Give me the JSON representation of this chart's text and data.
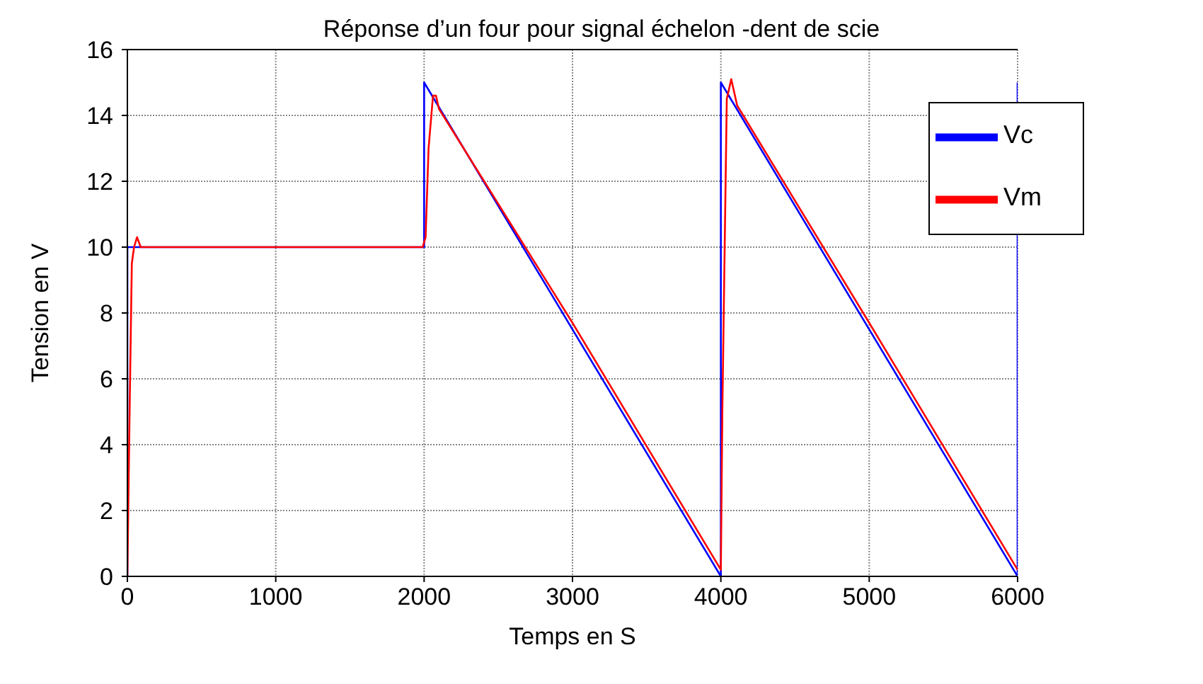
{
  "chart_data": {
    "type": "line",
    "title": "Réponse d’un four pour signal échelon -dent de scie",
    "xlabel": "Temps en S",
    "ylabel": "Tension en V",
    "series": [
      {
        "name": "Vc",
        "color": "#0000ff",
        "x": [
          0,
          0,
          2000,
          2000,
          4000,
          4000,
          6000,
          6000
        ],
        "values": [
          0,
          10,
          10,
          15,
          0,
          15,
          0,
          15
        ]
      },
      {
        "name": "Vm",
        "color": "#ff0000",
        "x": [
          0,
          15,
          30,
          45,
          65,
          90,
          1990,
          2010,
          2030,
          2060,
          2080,
          2100,
          3000,
          4000,
          4010,
          4040,
          4070,
          4110,
          5000,
          6000
        ],
        "values": [
          0,
          5,
          9.5,
          10,
          10.3,
          10,
          10,
          10.3,
          13,
          14.6,
          14.6,
          14.2,
          7.7,
          0.2,
          5,
          14.5,
          15.1,
          14.3,
          7.7,
          0.2
        ]
      }
    ],
    "xlim": [
      0,
      6000
    ],
    "xticks": [
      0,
      1000,
      2000,
      3000,
      4000,
      5000,
      6000
    ],
    "ylim": [
      0,
      16
    ],
    "yticks": [
      0,
      2,
      4,
      6,
      8,
      10,
      12,
      14,
      16
    ],
    "grid": true,
    "legend": "top right",
    "marker": "none",
    "line_style": "solid"
  }
}
